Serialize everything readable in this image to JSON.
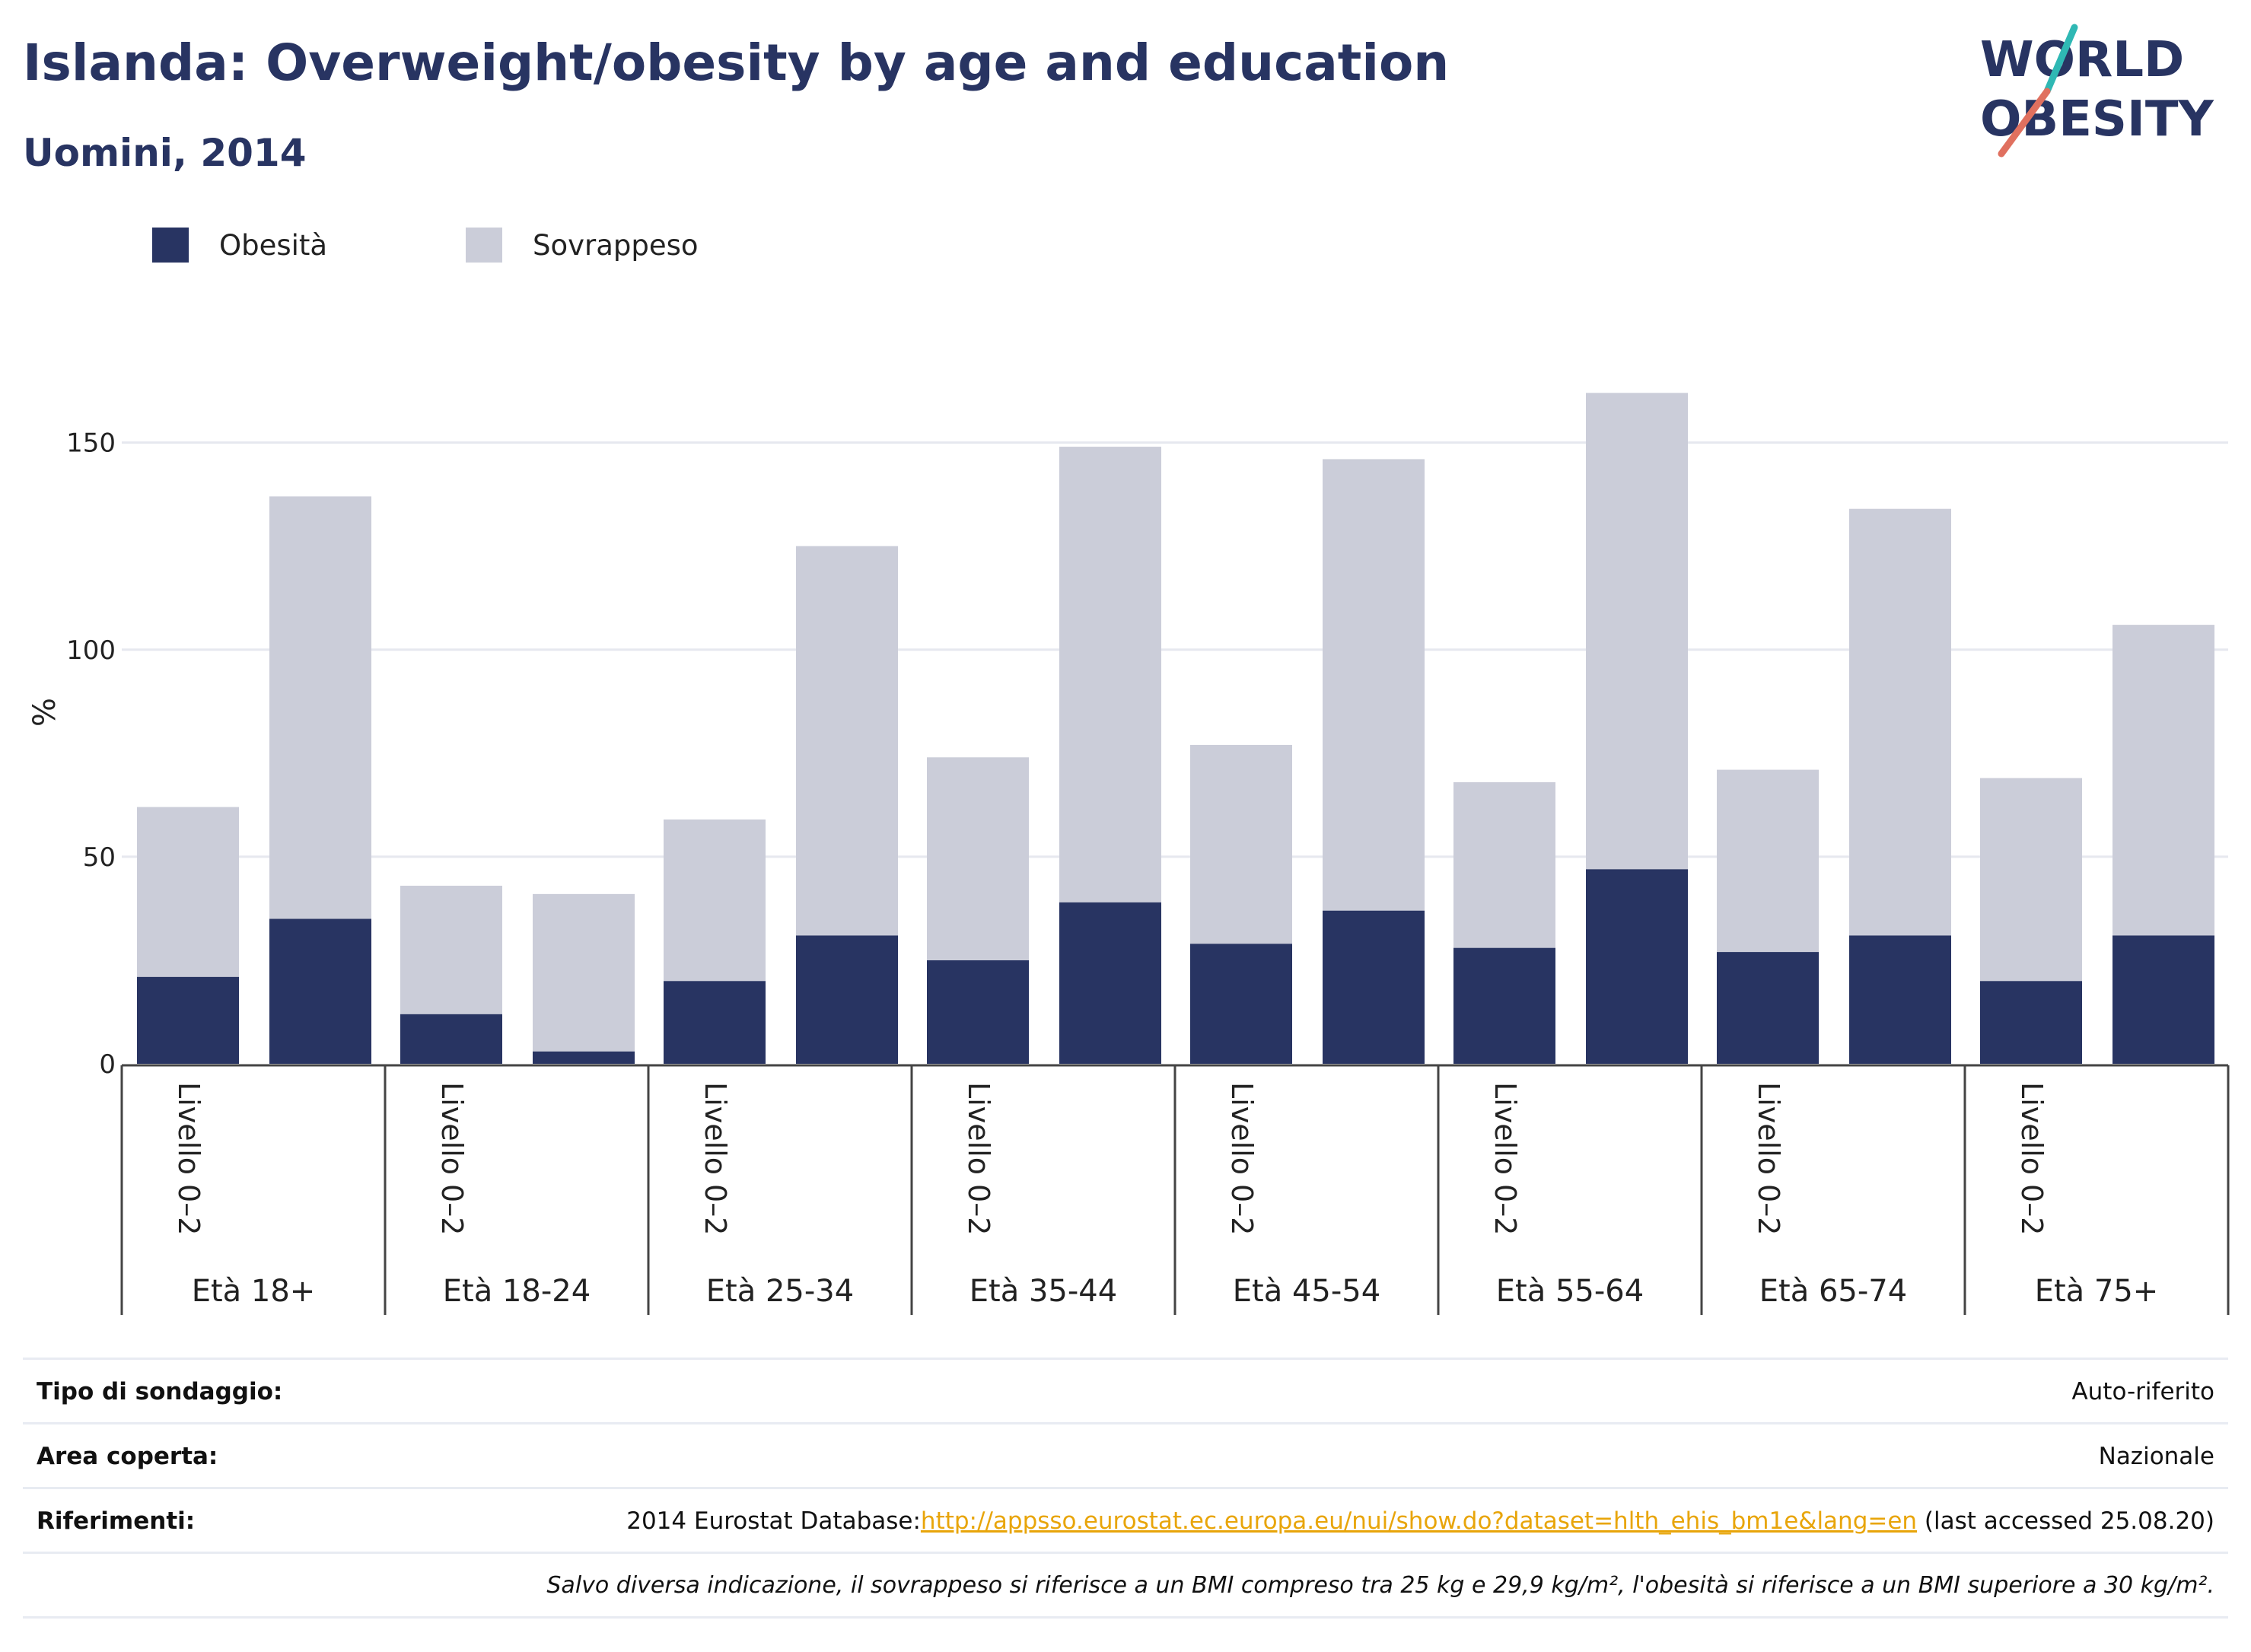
{
  "header": {
    "title": "Islanda: Overweight/obesity by age and education",
    "subtitle": "Uomini, 2014"
  },
  "logo": {
    "line1": "WORLD",
    "line2": "OBESITY",
    "text_color": "#283462",
    "slash_colors": [
      "#2fb8b4",
      "#e0705f"
    ]
  },
  "chart_data": {
    "type": "bar",
    "stacked": true,
    "ylabel": "%",
    "ylim": [
      0,
      165
    ],
    "yticks": [
      0,
      50,
      100,
      150
    ],
    "grid": true,
    "legend_position": "top-left",
    "series": [
      {
        "name": "Obesità",
        "color": "#283462",
        "values": [
          21,
          35,
          12,
          3,
          20,
          31,
          25,
          39,
          29,
          37,
          28,
          47,
          27,
          31,
          20,
          31
        ]
      },
      {
        "name": "Sovrappeso",
        "color": "#cbcdd9",
        "values": [
          41,
          102,
          31,
          38,
          39,
          94,
          49,
          110,
          48,
          109,
          40,
          115,
          44,
          103,
          49,
          75
        ]
      }
    ],
    "groups": [
      {
        "label": "Età 18+",
        "bars": [
          "Livello 0–2",
          ""
        ]
      },
      {
        "label": "Età 18-24",
        "bars": [
          "Livello 0–2",
          ""
        ]
      },
      {
        "label": "Età 25-34",
        "bars": [
          "Livello 0–2",
          ""
        ]
      },
      {
        "label": "Età 35-44",
        "bars": [
          "Livello 0–2",
          ""
        ]
      },
      {
        "label": "Età 45-54",
        "bars": [
          "Livello 0–2",
          ""
        ]
      },
      {
        "label": "Età 55-64",
        "bars": [
          "Livello 0–2",
          ""
        ]
      },
      {
        "label": "Età 65-74",
        "bars": [
          "Livello 0–2",
          ""
        ]
      },
      {
        "label": "Età 75+",
        "bars": [
          "Livello 0–2",
          ""
        ]
      }
    ]
  },
  "info": {
    "rows": [
      {
        "label": "Tipo di sondaggio:",
        "value": "Auto-riferito"
      },
      {
        "label": "Area coperta:",
        "value": "Nazionale"
      },
      {
        "label": "Riferimenti:",
        "prefix": "2014 Eurostat Database:",
        "link": "http://appsso.eurostat.ec.europa.eu/nui/show.do?dataset=hlth_ehis_bm1e&lang=en",
        "suffix": " (last accessed 25.08.20)"
      }
    ],
    "note": "Salvo diversa indicazione, il sovrappeso si riferisce a un BMI compreso tra 25 kg e 29,9 kg/m², l'obesità si riferisce a un BMI superiore a 30 kg/m²."
  }
}
